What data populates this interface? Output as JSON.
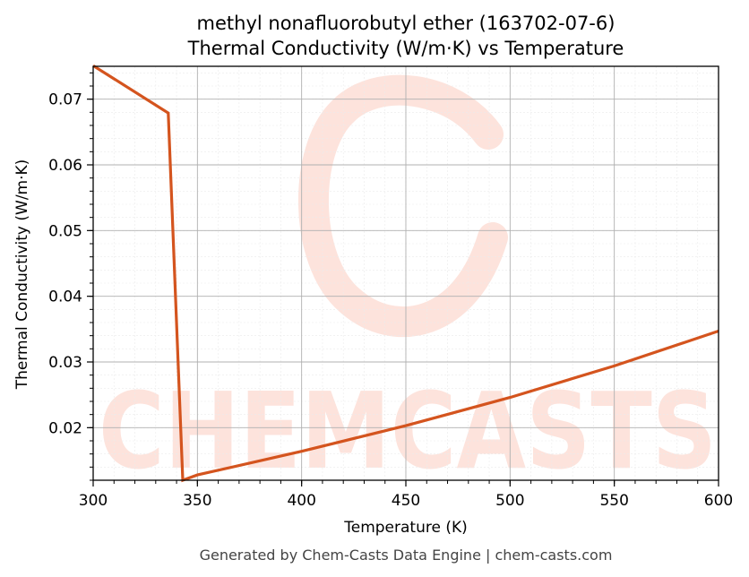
{
  "chart_data": {
    "type": "line",
    "title_line1": "methyl nonafluorobutyl ether (163702-07-6)",
    "title_line2": "Thermal Conductivity (W/m·K) vs Temperature",
    "xlabel": "Temperature (K)",
    "ylabel": "Thermal Conductivity (W/m·K)",
    "xlim": [
      300,
      600
    ],
    "ylim": [
      0.012,
      0.075
    ],
    "xticks": [
      300,
      350,
      400,
      450,
      500,
      550,
      600
    ],
    "yticks": [
      0.02,
      0.03,
      0.04,
      0.05,
      0.06,
      0.07
    ],
    "grid": true,
    "series": [
      {
        "color": "#d4541e",
        "x": [
          300,
          336,
          343,
          350,
          400,
          450,
          500,
          550,
          600
        ],
        "y": [
          0.0751,
          0.0679,
          0.012,
          0.0128,
          0.0164,
          0.0203,
          0.0246,
          0.0294,
          0.0347
        ]
      }
    ]
  },
  "watermark": {
    "text": "CHEMCASTS",
    "color": "#fde3dc"
  },
  "footer": "Generated by Chem-Casts Data Engine | chem-casts.com"
}
